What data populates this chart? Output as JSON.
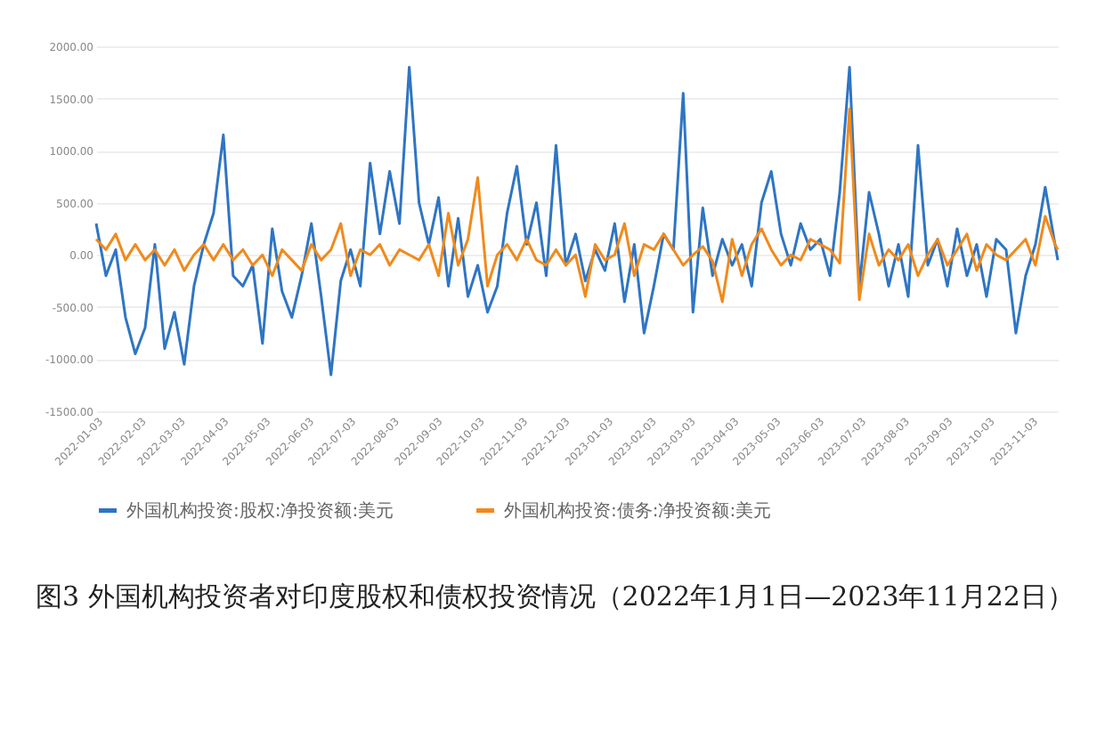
{
  "chart_data": {
    "type": "line",
    "title": "图3  外国机构投资者对印度股权和债权投资情况（2022年1月1日—2023年11月22日）",
    "x": [
      "2022-01-03",
      "2022-01-10",
      "2022-01-17",
      "2022-01-24",
      "2022-01-31",
      "2022-02-07",
      "2022-02-14",
      "2022-02-21",
      "2022-02-28",
      "2022-03-07",
      "2022-03-14",
      "2022-03-21",
      "2022-03-28",
      "2022-04-04",
      "2022-04-11",
      "2022-04-18",
      "2022-04-25",
      "2022-05-02",
      "2022-05-09",
      "2022-05-16",
      "2022-05-23",
      "2022-05-30",
      "2022-06-06",
      "2022-06-13",
      "2022-06-20",
      "2022-06-27",
      "2022-07-04",
      "2022-07-11",
      "2022-07-18",
      "2022-07-25",
      "2022-08-01",
      "2022-08-08",
      "2022-08-15",
      "2022-08-22",
      "2022-08-29",
      "2022-09-05",
      "2022-09-12",
      "2022-09-19",
      "2022-09-26",
      "2022-10-03",
      "2022-10-10",
      "2022-10-17",
      "2022-10-24",
      "2022-10-31",
      "2022-11-07",
      "2022-11-14",
      "2022-11-21",
      "2022-11-28",
      "2022-12-05",
      "2022-12-12",
      "2022-12-19",
      "2022-12-26",
      "2023-01-02",
      "2023-01-09",
      "2023-01-16",
      "2023-01-23",
      "2023-01-30",
      "2023-02-06",
      "2023-02-13",
      "2023-02-20",
      "2023-02-27",
      "2023-03-06",
      "2023-03-13",
      "2023-03-20",
      "2023-03-27",
      "2023-04-03",
      "2023-04-10",
      "2023-04-17",
      "2023-04-24",
      "2023-05-01",
      "2023-05-08",
      "2023-05-15",
      "2023-05-22",
      "2023-05-29",
      "2023-06-05",
      "2023-06-12",
      "2023-06-19",
      "2023-06-26",
      "2023-07-03",
      "2023-07-10",
      "2023-07-17",
      "2023-07-24",
      "2023-07-31",
      "2023-08-07",
      "2023-08-14",
      "2023-08-21",
      "2023-08-28",
      "2023-09-04",
      "2023-09-11",
      "2023-09-18",
      "2023-09-25",
      "2023-10-02",
      "2023-10-09",
      "2023-10-16",
      "2023-10-23",
      "2023-10-30",
      "2023-11-06",
      "2023-11-13",
      "2023-11-20",
      "2023-11-22"
    ],
    "series": [
      {
        "name": "外国机构投资:股权:净投资额:美元",
        "color": "#2e75c4",
        "values": [
          300,
          -200,
          50,
          -600,
          -950,
          -700,
          100,
          -900,
          -550,
          -1050,
          -300,
          100,
          400,
          1150,
          -200,
          -300,
          -100,
          -850,
          250,
          -350,
          -600,
          -200,
          300,
          -400,
          -1150,
          -250,
          50,
          -300,
          880,
          200,
          800,
          300,
          1800,
          500,
          100,
          550,
          -300,
          350,
          -400,
          -100,
          -550,
          -300,
          400,
          850,
          100,
          500,
          -200,
          1050,
          -100,
          200,
          -250,
          50,
          -150,
          300,
          -450,
          100,
          -750,
          -300,
          200,
          50,
          1550,
          -550,
          450,
          -200,
          150,
          -100,
          100,
          -300,
          500,
          800,
          200,
          -100,
          300,
          50,
          150,
          -200,
          600,
          1800,
          -300,
          600,
          200,
          -300,
          100,
          -400,
          1050,
          -100,
          150,
          -300,
          250,
          -200,
          100,
          -400,
          150,
          50,
          -750,
          -200,
          100,
          650,
          100,
          -50
        ]
      },
      {
        "name": "外国机构投资:债务:净投资额:美元",
        "color": "#f08a1c",
        "values": [
          150,
          50,
          200,
          -50,
          100,
          -50,
          50,
          -100,
          50,
          -150,
          0,
          100,
          -50,
          100,
          -50,
          50,
          -100,
          0,
          -200,
          50,
          -50,
          -150,
          100,
          -50,
          50,
          300,
          -200,
          50,
          0,
          100,
          -100,
          50,
          0,
          -50,
          100,
          -200,
          400,
          -100,
          150,
          740,
          -300,
          0,
          100,
          -50,
          150,
          -50,
          -100,
          50,
          -100,
          0,
          -400,
          100,
          -50,
          0,
          300,
          -200,
          100,
          50,
          200,
          50,
          -100,
          0,
          80,
          -60,
          -450,
          150,
          -200,
          100,
          250,
          50,
          -100,
          0,
          -50,
          150,
          100,
          50,
          -80,
          1400,
          -430,
          200,
          -100,
          50,
          -50,
          100,
          -200,
          0,
          150,
          -100,
          50,
          200,
          -150,
          100,
          0,
          -50,
          50,
          150,
          -100,
          370,
          100,
          50
        ]
      }
    ],
    "xlim": [
      "2022-01-03",
      "2023-11-22"
    ],
    "xticks": [
      "2022-01-03",
      "2022-02-03",
      "2022-03-03",
      "2022-04-03",
      "2022-05-03",
      "2022-06-03",
      "2022-07-03",
      "2022-08-03",
      "2022-09-03",
      "2022-10-03",
      "2022-11-03",
      "2022-12-03",
      "2023-01-03",
      "2023-02-03",
      "2023-03-03",
      "2023-04-03",
      "2023-05-03",
      "2023-06-03",
      "2023-07-03",
      "2023-08-03",
      "2023-09-03",
      "2023-10-03",
      "2023-11-03"
    ],
    "ylim": [
      -1500,
      2000
    ],
    "yticks": [
      {
        "value": -1500,
        "label": "-1500.00"
      },
      {
        "value": -1000,
        "label": "-1000.00"
      },
      {
        "value": -500,
        "label": "-500.00"
      },
      {
        "value": 0,
        "label": "0.00"
      },
      {
        "value": 500,
        "label": "500.00"
      },
      {
        "value": 1000,
        "label": "1000.00"
      },
      {
        "value": 1500,
        "label": "1500.00"
      },
      {
        "value": 2000,
        "label": "2000.00"
      }
    ],
    "grid": "y",
    "legend": "bottom"
  }
}
